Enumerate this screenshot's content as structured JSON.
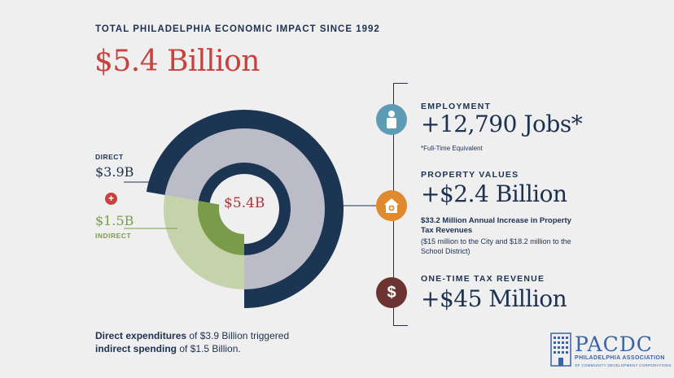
{
  "heading": "TOTAL PHILADELPHIA ECONOMIC IMPACT SINCE 1992",
  "total": "$5.4 Billion",
  "chart_data": {
    "type": "pie",
    "title": "TOTAL PHILADELPHIA ECONOMIC IMPACT SINCE 1992",
    "center_label": "$5.4B",
    "categories": [
      "DIRECT",
      "INDIRECT"
    ],
    "values": [
      3.9,
      1.5
    ],
    "unit": "Billion USD",
    "value_labels": [
      "$3.9B",
      "$1.5B"
    ],
    "colors": {
      "direct": "#1c3553",
      "indirect": "#7a9c4a",
      "direct_light": "#bcbcc8",
      "indirect_light": "#c5d3ab",
      "inner_ring": "#1c3553"
    }
  },
  "legend": {
    "direct_label": "DIRECT",
    "direct_value": "$3.9B",
    "plus_symbol": "+",
    "indirect_value": "$1.5B",
    "indirect_label": "INDIRECT"
  },
  "note": {
    "part1_bold": "Direct expenditures",
    "part1": " of $3.9 Billion triggered",
    "part2_bold": "indirect spending",
    "part2": " of $1.5 Billion."
  },
  "sections": {
    "employment": {
      "title": "EMPLOYMENT",
      "value": "+12,790 Jobs*",
      "note": "*Full-Time Equivalent",
      "icon": "person-icon",
      "color": "#5e9bb5"
    },
    "property": {
      "title": "PROPERTY VALUES",
      "value": "+$2.4 Billion",
      "bold": "$33.2 Million Annual Increase in Property Tax Revenues",
      "sub": "($15 million to the City and $18.2 million to the School District)",
      "icon": "house-icon",
      "color": "#e08a2f"
    },
    "tax": {
      "title": "ONE-TIME TAX REVENUE",
      "value": "+$45 Million",
      "icon": "dollar-icon",
      "symbol": "$",
      "color": "#6b3331"
    }
  },
  "logo": {
    "name": "PACDC",
    "line1": "PHILADELPHIA ASSOCIATION",
    "line2": "OF COMMUNITY DEVELOPMENT CORPORATIONS"
  }
}
